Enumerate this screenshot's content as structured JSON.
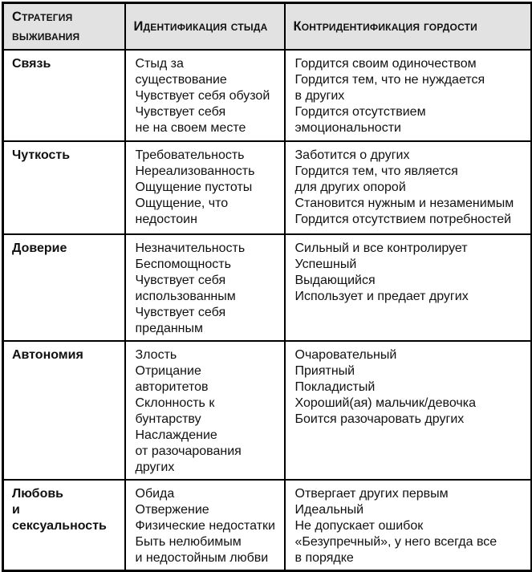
{
  "table": {
    "headers": [
      "Стратегия выживания",
      "Идентификация стыда",
      "Контридентификация гордости"
    ],
    "rows": [
      {
        "strategy": "Связь",
        "shame": "Стыд за существование\nЧувствует себя обузой\nЧувствует себя\nне на своем месте",
        "pride": "Гордится своим одиночеством\nГордится тем, что не нуждается\nв других\nГордится отсутствием\nэмоциональности"
      },
      {
        "strategy": "Чуткость",
        "shame": "Требовательность\nНереализованность\nОщущение пустоты\nОщущение, что\nнедостоин",
        "pride": "Заботится о других\nГордится тем, что является\nдля других опорой\nСтановится нужным и незаменимым\nГордится отсутствием потребностей"
      },
      {
        "strategy": "Доверие",
        "shame": "Незначительность\nБеспомощность\nЧувствует себя\nиспользованным\nЧувствует себя\nпреданным",
        "pride": "Сильный и все контролирует\nУспешный\nВыдающийся\nИспользует и предает других"
      },
      {
        "strategy": "Автономия",
        "shame": "Злость\nОтрицание авторитетов\nСклонность к бунтарству\nНаслаждение\nот разочарования других",
        "pride": "Очаровательный\nПриятный\nПокладистый\nХороший(ая) мальчик/девочка\nБоится разочаровать других"
      },
      {
        "strategy": "Любовь\nи сексуальность",
        "shame": "Обида\nОтвержение\nФизические недостатки\nБыть нелюбимым\nи недостойным любви",
        "pride": "Отвергает других первым\nИдеальный\nНе допускает ошибок\n«Безупречный», у него всегда все\nв порядке"
      }
    ]
  },
  "colors": {
    "header_background": "#e2e2e2",
    "border": "#000000",
    "text": "#111111"
  }
}
